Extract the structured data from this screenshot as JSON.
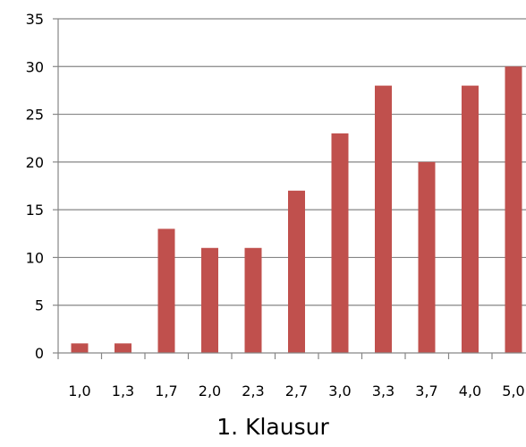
{
  "chart_data": {
    "type": "bar",
    "title": "1. Klausur",
    "xlabel": "",
    "ylabel": "",
    "categories": [
      "1,0",
      "1,3",
      "1,7",
      "2,0",
      "2,3",
      "2,7",
      "3,0",
      "3,3",
      "3,7",
      "4,0",
      "5,0"
    ],
    "values": [
      1,
      1,
      13,
      11,
      11,
      17,
      23,
      28,
      20,
      28,
      30
    ],
    "ylim": [
      0,
      35
    ],
    "yticks": [
      "0",
      "5",
      "10",
      "15",
      "20",
      "25",
      "30",
      "35"
    ],
    "grid": true,
    "legend": "none",
    "bar_color": "#c0504d",
    "grid_color": "#868686",
    "axis_color": "#868686"
  }
}
